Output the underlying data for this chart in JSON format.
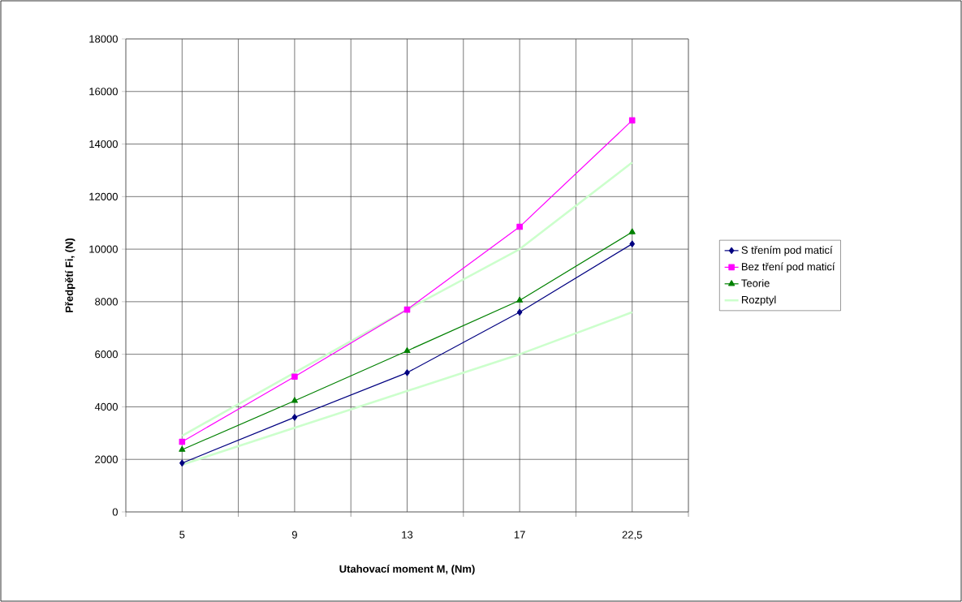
{
  "chart_data": {
    "type": "line",
    "xlabel": "Utahovací moment M, (Nm)",
    "ylabel": "Předpětí Fi, (N)",
    "categories": [
      "5",
      "9",
      "13",
      "17",
      "22,5"
    ],
    "series": [
      {
        "name": "S třením pod maticí",
        "color": "#000080",
        "marker": "diamond",
        "values": [
          1860,
          3600,
          5300,
          7600,
          10200
        ]
      },
      {
        "name": "Bez tření pod maticí",
        "color": "#ff00ff",
        "marker": "square",
        "values": [
          2670,
          5150,
          7700,
          10850,
          14900
        ]
      },
      {
        "name": "Teorie",
        "color": "#008000",
        "marker": "triangle",
        "values": [
          2370,
          4230,
          6130,
          8050,
          10650
        ]
      },
      {
        "name": "Rozptyl",
        "color": "#ccffcc",
        "marker": "none",
        "values": [
          2900,
          5300,
          7700,
          10000,
          13300
        ]
      },
      {
        "color": "#ccffcc",
        "marker": "none",
        "values": [
          1800,
          3200,
          4600,
          6000,
          7600
        ]
      }
    ],
    "ylim": [
      0,
      18000
    ],
    "yticks": [
      0,
      2000,
      4000,
      6000,
      8000,
      10000,
      12000,
      14000,
      16000,
      18000
    ],
    "grid": true,
    "legend": "right"
  }
}
